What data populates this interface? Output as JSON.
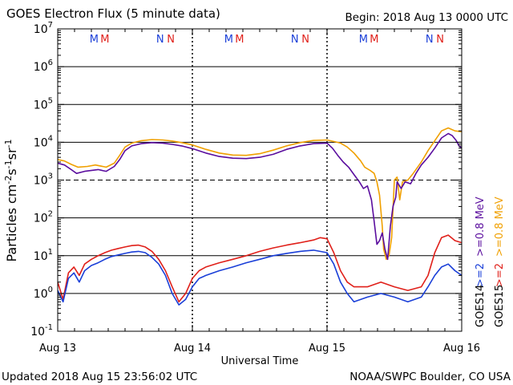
{
  "chart_data": {
    "type": "line",
    "title": "GOES Electron Flux (5 minute data)",
    "begin_label": "Begin: 2018 Aug 13 0000 UTC",
    "xlabel": "Universal Time",
    "ylabel_parts": {
      "base": "Particles cm",
      "sup1": "-2",
      "mid1": "s",
      "sup2": "-1",
      "mid2": "sr",
      "sup3": "-1"
    },
    "updated_label": "Updated 2018 Aug 15 23:56:02 UTC",
    "credit_label": "NOAA/SWPC Boulder, CO USA",
    "x_range_days": [
      0,
      3
    ],
    "x_ticks": [
      {
        "day": 0,
        "label": "Aug 13"
      },
      {
        "day": 1,
        "label": "Aug 14"
      },
      {
        "day": 2,
        "label": "Aug 15"
      },
      {
        "day": 3,
        "label": "Aug 16"
      }
    ],
    "y_scale": "log",
    "y_range_exp": [
      -1,
      7
    ],
    "y_ticks": [
      {
        "exp": -1,
        "base": "10",
        "sup": "-1"
      },
      {
        "exp": 0,
        "base": "10",
        "sup": "0"
      },
      {
        "exp": 1,
        "base": "10",
        "sup": "1"
      },
      {
        "exp": 2,
        "base": "10",
        "sup": "2"
      },
      {
        "exp": 3,
        "base": "10",
        "sup": "3"
      },
      {
        "exp": 4,
        "base": "10",
        "sup": "4"
      },
      {
        "exp": 5,
        "base": "10",
        "sup": "5"
      },
      {
        "exp": 6,
        "base": "10",
        "sup": "6"
      },
      {
        "exp": 7,
        "base": "10",
        "sup": "7"
      }
    ],
    "grid_solid_exp": [
      0,
      1,
      2,
      4,
      5,
      6
    ],
    "grid_dashed_exp": [
      3
    ],
    "markers": [
      {
        "day": 0.27,
        "text": "M",
        "color": "#1a3fd8"
      },
      {
        "day": 0.35,
        "text": "M",
        "color": "#e0201a"
      },
      {
        "day": 0.76,
        "text": "N",
        "color": "#1a3fd8"
      },
      {
        "day": 0.84,
        "text": "N",
        "color": "#e0201a"
      },
      {
        "day": 1.27,
        "text": "M",
        "color": "#1a3fd8"
      },
      {
        "day": 1.35,
        "text": "M",
        "color": "#e0201a"
      },
      {
        "day": 1.76,
        "text": "N",
        "color": "#1a3fd8"
      },
      {
        "day": 1.84,
        "text": "N",
        "color": "#e0201a"
      },
      {
        "day": 2.27,
        "text": "M",
        "color": "#1a3fd8"
      },
      {
        "day": 2.35,
        "text": "M",
        "color": "#e0201a"
      },
      {
        "day": 2.76,
        "text": "N",
        "color": "#1a3fd8"
      },
      {
        "day": 2.84,
        "text": "N",
        "color": "#e0201a"
      }
    ],
    "legend": [
      {
        "sat": "GOES14",
        "text": ">=0.8 MeV",
        "color": "#5a0d9e"
      },
      {
        "sat": "GOES14",
        "text": ">=2",
        "color": "#1a3fd8"
      },
      {
        "sat": "GOES15",
        "text": ">=0.8 MeV",
        "color": "#f0a000"
      },
      {
        "sat": "GOES15",
        "text": ">=2",
        "color": "#e0201a"
      }
    ],
    "sat_labels": [
      "GOES14",
      "GOES15"
    ],
    "series": [
      {
        "name": "GOES14 >=0.8 MeV",
        "color": "#5a0d9e",
        "points": [
          [
            0,
            2800
          ],
          [
            0.05,
            2500
          ],
          [
            0.1,
            1900
          ],
          [
            0.14,
            1500
          ],
          [
            0.2,
            1700
          ],
          [
            0.3,
            1900
          ],
          [
            0.36,
            1700
          ],
          [
            0.42,
            2300
          ],
          [
            0.46,
            3500
          ],
          [
            0.5,
            6000
          ],
          [
            0.55,
            8000
          ],
          [
            0.62,
            9200
          ],
          [
            0.7,
            9800
          ],
          [
            0.78,
            9500
          ],
          [
            0.85,
            8800
          ],
          [
            0.92,
            8000
          ],
          [
            1.0,
            6800
          ],
          [
            1.1,
            5200
          ],
          [
            1.2,
            4200
          ],
          [
            1.3,
            3800
          ],
          [
            1.4,
            3700
          ],
          [
            1.5,
            4000
          ],
          [
            1.6,
            4800
          ],
          [
            1.7,
            6500
          ],
          [
            1.8,
            8000
          ],
          [
            1.9,
            9200
          ],
          [
            2.0,
            9500
          ],
          [
            2.04,
            7000
          ],
          [
            2.08,
            4500
          ],
          [
            2.12,
            3000
          ],
          [
            2.16,
            2200
          ],
          [
            2.2,
            1400
          ],
          [
            2.24,
            900
          ],
          [
            2.27,
            600
          ],
          [
            2.3,
            700
          ],
          [
            2.33,
            300
          ],
          [
            2.35,
            80
          ],
          [
            2.37,
            20
          ],
          [
            2.39,
            25
          ],
          [
            2.41,
            40
          ],
          [
            2.43,
            15
          ],
          [
            2.45,
            8
          ],
          [
            2.47,
            60
          ],
          [
            2.49,
            200
          ],
          [
            2.51,
            350
          ],
          [
            2.52,
            900
          ],
          [
            2.55,
            600
          ],
          [
            2.58,
            900
          ],
          [
            2.62,
            800
          ],
          [
            2.66,
            1500
          ],
          [
            2.7,
            2500
          ],
          [
            2.75,
            4000
          ],
          [
            2.8,
            7000
          ],
          [
            2.85,
            13000
          ],
          [
            2.9,
            17000
          ],
          [
            2.93,
            15000
          ],
          [
            2.96,
            11000
          ],
          [
            2.98,
            8000
          ],
          [
            3.0,
            7000
          ]
        ]
      },
      {
        "name": "GOES15 >=0.8 MeV",
        "color": "#f0a000",
        "points": [
          [
            0,
            3500
          ],
          [
            0.05,
            3200
          ],
          [
            0.1,
            2600
          ],
          [
            0.15,
            2200
          ],
          [
            0.22,
            2300
          ],
          [
            0.28,
            2500
          ],
          [
            0.36,
            2200
          ],
          [
            0.42,
            2800
          ],
          [
            0.46,
            4500
          ],
          [
            0.5,
            7500
          ],
          [
            0.55,
            9500
          ],
          [
            0.62,
            11000
          ],
          [
            0.7,
            11800
          ],
          [
            0.78,
            11500
          ],
          [
            0.85,
            10800
          ],
          [
            0.92,
            9800
          ],
          [
            1.0,
            8500
          ],
          [
            1.1,
            6500
          ],
          [
            1.2,
            5200
          ],
          [
            1.3,
            4600
          ],
          [
            1.4,
            4500
          ],
          [
            1.5,
            5000
          ],
          [
            1.6,
            6200
          ],
          [
            1.7,
            8000
          ],
          [
            1.8,
            9800
          ],
          [
            1.9,
            11200
          ],
          [
            2.0,
            11500
          ],
          [
            2.05,
            10500
          ],
          [
            2.1,
            9500
          ],
          [
            2.15,
            7500
          ],
          [
            2.2,
            5200
          ],
          [
            2.25,
            3200
          ],
          [
            2.28,
            2200
          ],
          [
            2.32,
            1800
          ],
          [
            2.35,
            1500
          ],
          [
            2.37,
            900
          ],
          [
            2.39,
            400
          ],
          [
            2.41,
            60
          ],
          [
            2.42,
            15
          ],
          [
            2.44,
            8
          ],
          [
            2.46,
            10
          ],
          [
            2.48,
            30
          ],
          [
            2.5,
            1000
          ],
          [
            2.52,
            1200
          ],
          [
            2.54,
            300
          ],
          [
            2.56,
            900
          ],
          [
            2.6,
            1000
          ],
          [
            2.64,
            1500
          ],
          [
            2.7,
            3000
          ],
          [
            2.75,
            6000
          ],
          [
            2.8,
            11000
          ],
          [
            2.85,
            20000
          ],
          [
            2.9,
            24000
          ],
          [
            2.95,
            20000
          ],
          [
            3.0,
            19000
          ]
        ]
      },
      {
        "name": "GOES14 >=2",
        "color": "#1a3fd8",
        "points": [
          [
            0,
            1.2
          ],
          [
            0.04,
            0.6
          ],
          [
            0.08,
            2.5
          ],
          [
            0.12,
            3.5
          ],
          [
            0.16,
            2.0
          ],
          [
            0.2,
            4.0
          ],
          [
            0.25,
            5.5
          ],
          [
            0.3,
            6.5
          ],
          [
            0.35,
            8.0
          ],
          [
            0.4,
            9.5
          ],
          [
            0.45,
            10.5
          ],
          [
            0.5,
            11.5
          ],
          [
            0.55,
            12.5
          ],
          [
            0.6,
            13.0
          ],
          [
            0.65,
            12.0
          ],
          [
            0.7,
            9.0
          ],
          [
            0.75,
            6.0
          ],
          [
            0.8,
            3.0
          ],
          [
            0.85,
            1.0
          ],
          [
            0.9,
            0.5
          ],
          [
            0.95,
            0.7
          ],
          [
            1.0,
            1.5
          ],
          [
            1.05,
            2.5
          ],
          [
            1.1,
            3.0
          ],
          [
            1.2,
            4.0
          ],
          [
            1.3,
            5.0
          ],
          [
            1.4,
            6.5
          ],
          [
            1.5,
            8.0
          ],
          [
            1.6,
            10.0
          ],
          [
            1.7,
            11.5
          ],
          [
            1.8,
            13.0
          ],
          [
            1.9,
            14.0
          ],
          [
            2.0,
            12.0
          ],
          [
            2.05,
            6.0
          ],
          [
            2.1,
            2.0
          ],
          [
            2.15,
            1.0
          ],
          [
            2.2,
            0.6
          ],
          [
            2.3,
            0.8
          ],
          [
            2.4,
            1.0
          ],
          [
            2.5,
            0.8
          ],
          [
            2.6,
            0.6
          ],
          [
            2.7,
            0.8
          ],
          [
            2.75,
            1.5
          ],
          [
            2.8,
            3.0
          ],
          [
            2.85,
            5.0
          ],
          [
            2.9,
            6.0
          ],
          [
            2.95,
            4.0
          ],
          [
            3.0,
            3.0
          ]
        ]
      },
      {
        "name": "GOES15 >=2",
        "color": "#e0201a",
        "points": [
          [
            0,
            2.0
          ],
          [
            0.04,
            0.7
          ],
          [
            0.08,
            3.5
          ],
          [
            0.12,
            5.0
          ],
          [
            0.16,
            3.0
          ],
          [
            0.2,
            6.0
          ],
          [
            0.25,
            8.0
          ],
          [
            0.3,
            10.0
          ],
          [
            0.35,
            12.0
          ],
          [
            0.4,
            14.0
          ],
          [
            0.45,
            15.5
          ],
          [
            0.5,
            17.0
          ],
          [
            0.55,
            18.5
          ],
          [
            0.6,
            19.0
          ],
          [
            0.65,
            17.0
          ],
          [
            0.7,
            13.0
          ],
          [
            0.75,
            8.0
          ],
          [
            0.8,
            4.0
          ],
          [
            0.85,
            1.5
          ],
          [
            0.9,
            0.6
          ],
          [
            0.95,
            1.0
          ],
          [
            1.0,
            2.5
          ],
          [
            1.05,
            4.0
          ],
          [
            1.1,
            5.0
          ],
          [
            1.2,
            6.5
          ],
          [
            1.3,
            8.0
          ],
          [
            1.4,
            10.0
          ],
          [
            1.5,
            13.0
          ],
          [
            1.6,
            16.0
          ],
          [
            1.7,
            19.0
          ],
          [
            1.8,
            22.0
          ],
          [
            1.9,
            26.0
          ],
          [
            1.95,
            30.0
          ],
          [
            2.0,
            28.0
          ],
          [
            2.05,
            12.0
          ],
          [
            2.1,
            4.0
          ],
          [
            2.15,
            2.0
          ],
          [
            2.2,
            1.5
          ],
          [
            2.3,
            1.5
          ],
          [
            2.4,
            2.0
          ],
          [
            2.5,
            1.5
          ],
          [
            2.6,
            1.2
          ],
          [
            2.7,
            1.5
          ],
          [
            2.75,
            3.0
          ],
          [
            2.8,
            12.0
          ],
          [
            2.85,
            30.0
          ],
          [
            2.9,
            35.0
          ],
          [
            2.95,
            25.0
          ],
          [
            3.0,
            22.0
          ]
        ]
      }
    ]
  }
}
